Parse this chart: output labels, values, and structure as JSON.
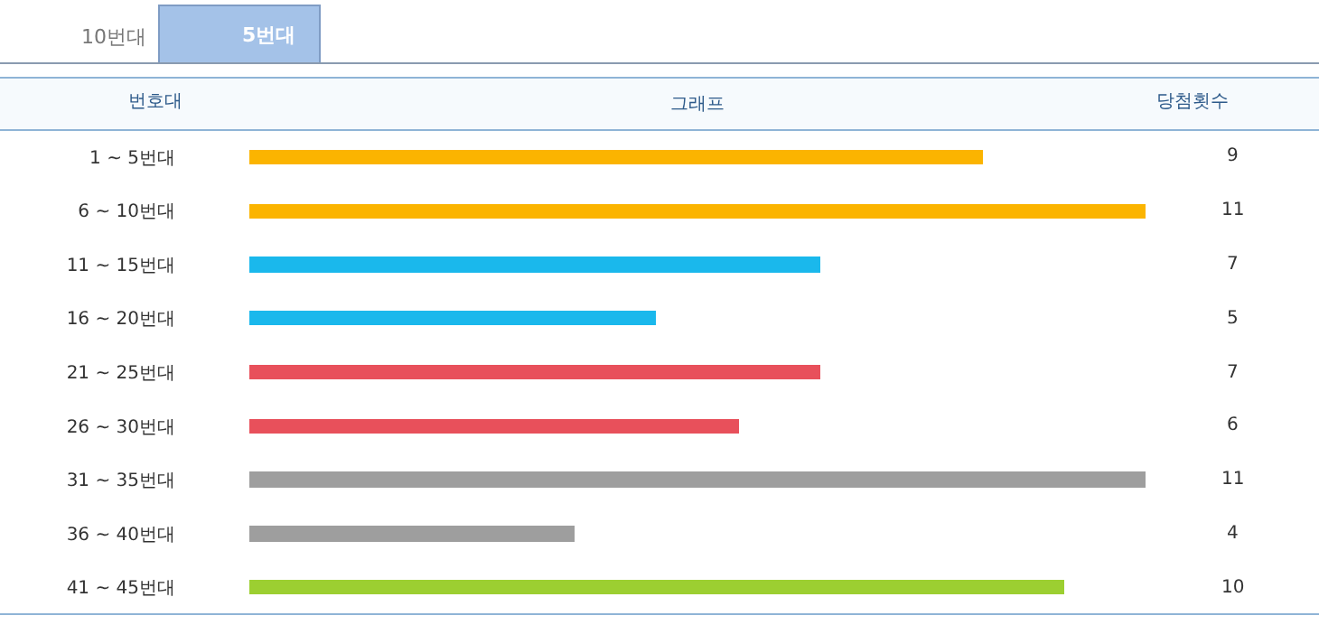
{
  "chart_data": {
    "type": "bar",
    "orientation": "horizontal",
    "title": "그래프",
    "ylabel": "번호대",
    "annotations": [
      "10번대",
      "5번대",
      "당첨횟수"
    ],
    "categories": [
      "1 ~ 5번대",
      "6 ~ 10번대",
      "11 ~ 15번대",
      "16 ~ 20번대",
      "21 ~ 25번대",
      "26 ~ 30번대",
      "31 ~ 35번대",
      "36 ~ 40번대",
      "41 ~ 45번대"
    ],
    "values": [
      9,
      11,
      7,
      5,
      7,
      6,
      11,
      4,
      10
    ],
    "colors": [
      "#fbb400",
      "#fbb400",
      "#1ab8ec",
      "#1ab8ec",
      "#e8505b",
      "#e8505b",
      "#9e9e9e",
      "#9e9e9e",
      "#9ccf31"
    ],
    "xlim": [
      0,
      11
    ],
    "data_labels": true,
    "tick_labels": "y"
  }
}
